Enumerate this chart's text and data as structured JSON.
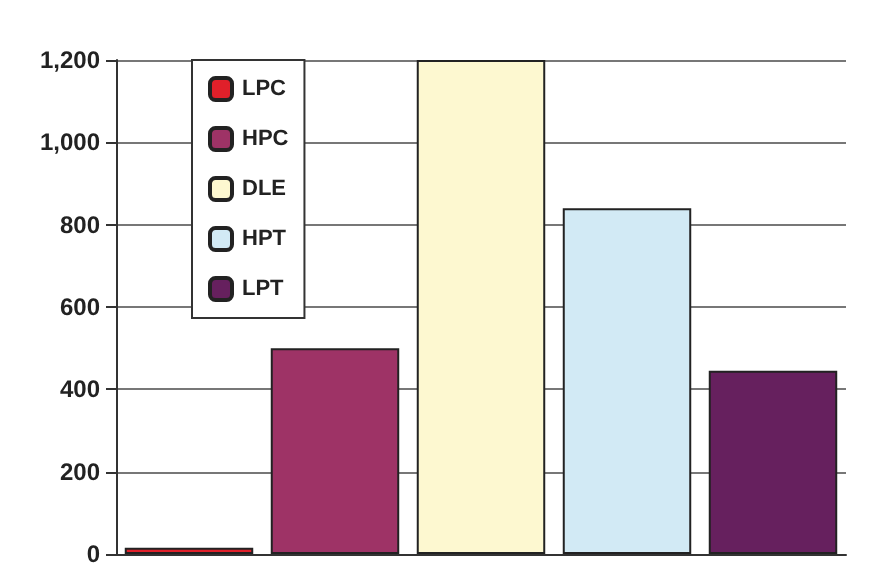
{
  "chart_data": {
    "type": "bar",
    "categories": [
      null,
      null,
      null,
      null,
      null
    ],
    "series": [
      {
        "name": "LPC",
        "color": "#e0202a",
        "values": [
          15,
          null,
          null,
          null,
          null
        ]
      },
      {
        "name": "HPC",
        "color": "#9e3366",
        "values": [
          null,
          500,
          null,
          null,
          null
        ]
      },
      {
        "name": "DLE",
        "color": "#fdf8d0",
        "values": [
          null,
          null,
          1200,
          null,
          null
        ]
      },
      {
        "name": "HPT",
        "color": "#d2eaf5",
        "values": [
          null,
          null,
          null,
          840,
          null
        ]
      },
      {
        "name": "LPT",
        "color": "#66205e",
        "values": [
          null,
          null,
          null,
          null,
          445
        ]
      }
    ],
    "ylim": [
      0,
      1200
    ],
    "yticks": [
      0,
      200,
      400,
      600,
      800,
      {
        "value": 1000,
        "label": "1,000"
      },
      {
        "value": 1200,
        "label": "1,200"
      }
    ],
    "grid": "y",
    "legend": "top left"
  }
}
